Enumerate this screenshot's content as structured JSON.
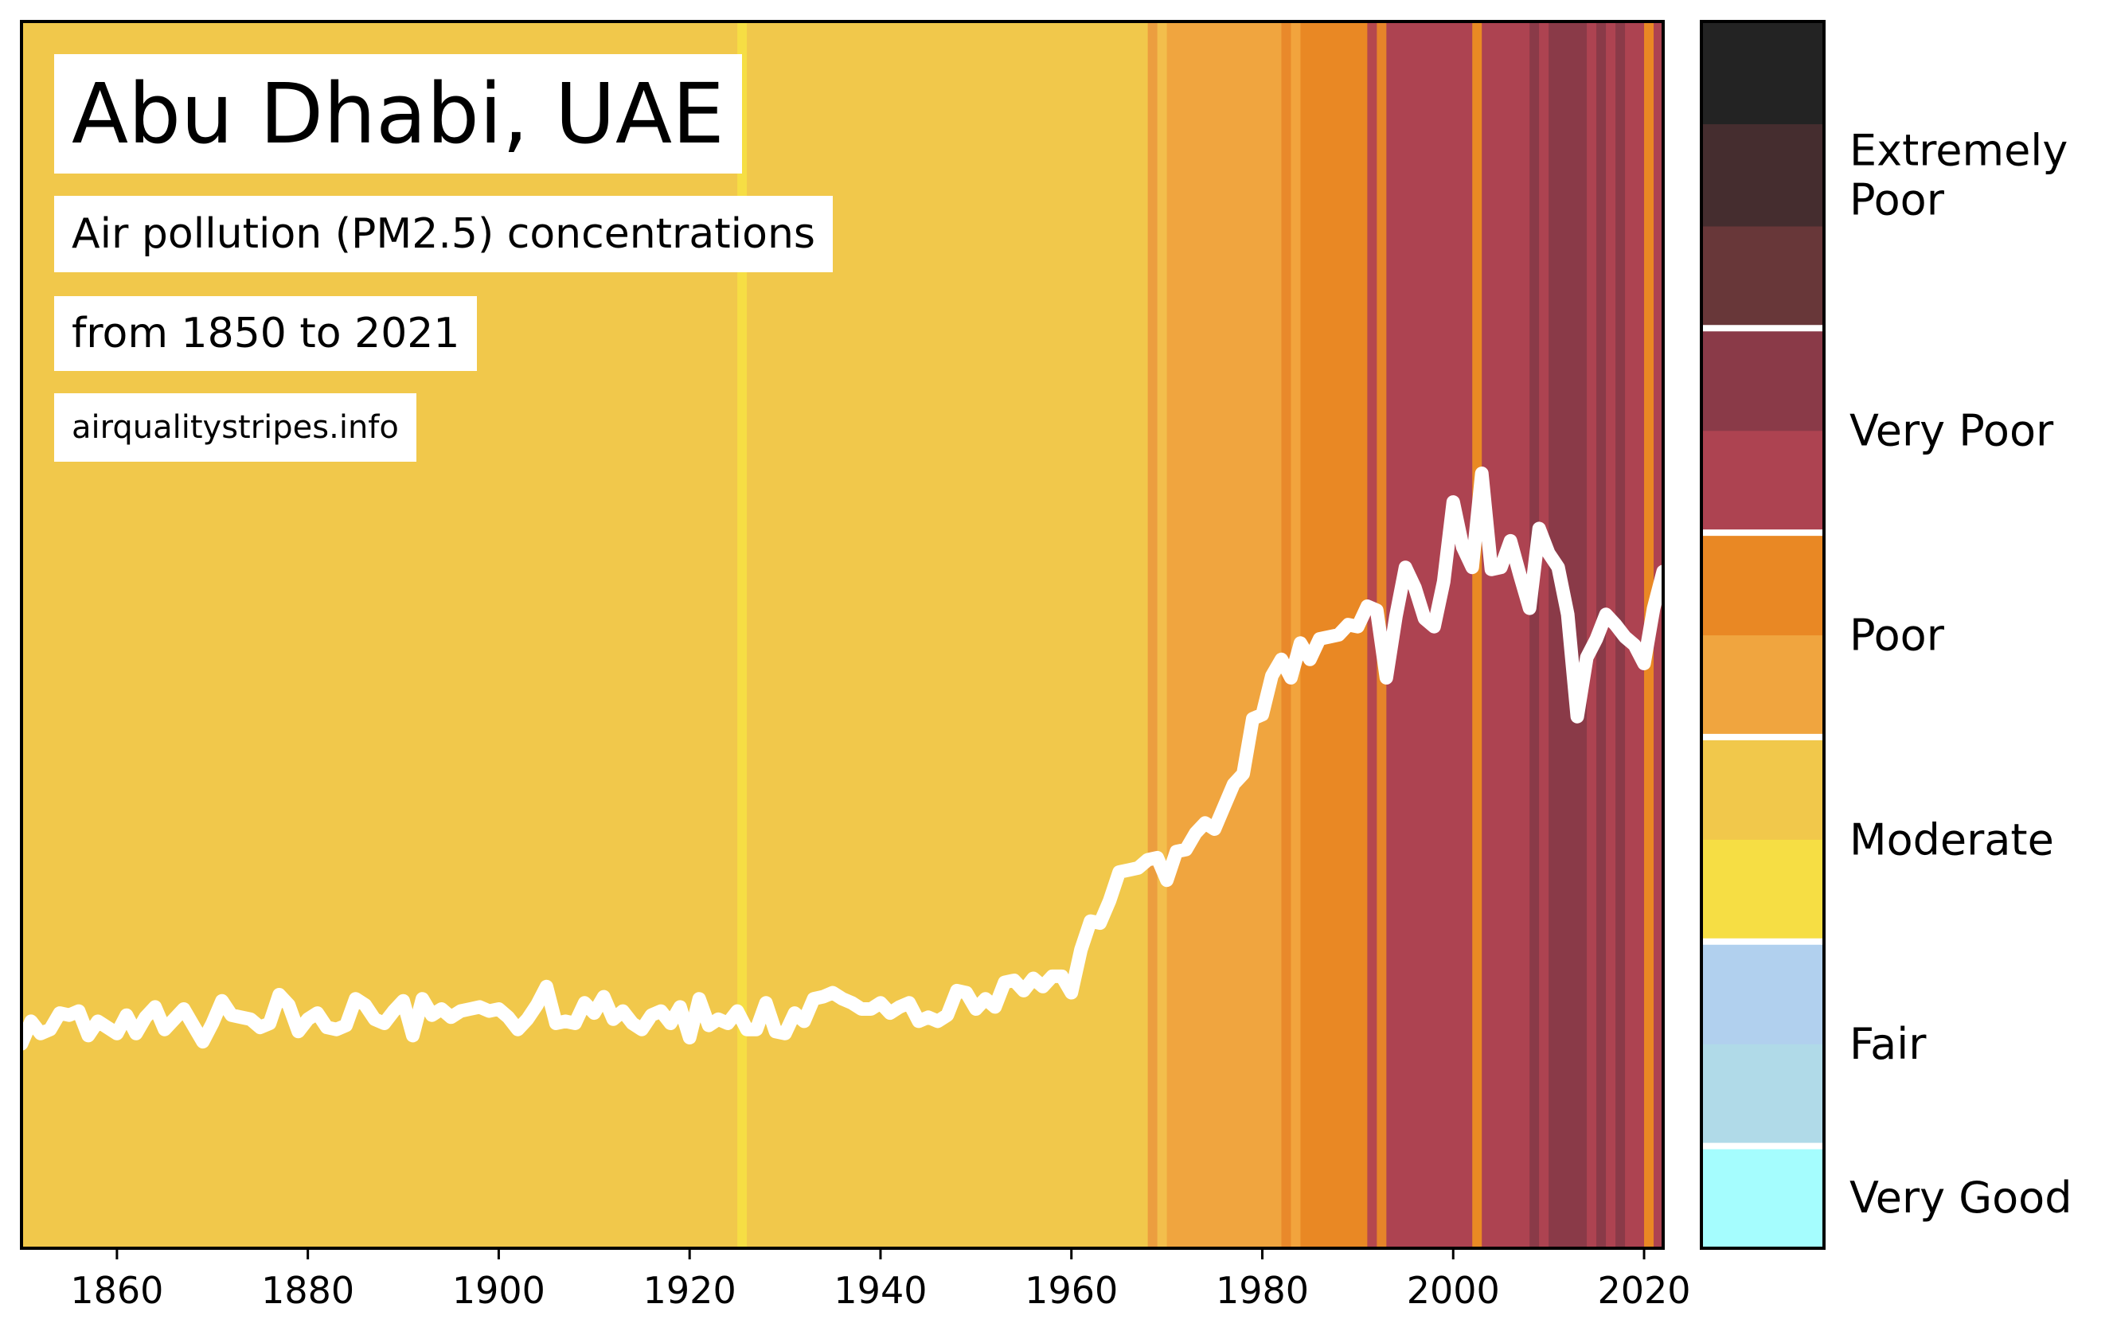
{
  "chart_data": {
    "type": "line",
    "title": "Abu Dhabi, UAE",
    "subtitle": "Air pollution (PM2.5) concentrations",
    "subtitle2": "from 1850 to 2021",
    "source": "airqualitystripes.info",
    "xlabel": "",
    "ylabel": "",
    "xlim": [
      1850,
      2022
    ],
    "ylim": [
      0,
      60
    ],
    "x_ticks": [
      1860,
      1880,
      1900,
      1920,
      1940,
      1960,
      1980,
      2000,
      2020
    ],
    "grid": false,
    "line_color": "#ffffff",
    "years": [
      1850,
      1851,
      1852,
      1853,
      1854,
      1855,
      1856,
      1857,
      1858,
      1859,
      1860,
      1861,
      1862,
      1863,
      1864,
      1865,
      1866,
      1867,
      1868,
      1869,
      1870,
      1871,
      1872,
      1873,
      1874,
      1875,
      1876,
      1877,
      1878,
      1879,
      1880,
      1881,
      1882,
      1883,
      1884,
      1885,
      1886,
      1887,
      1888,
      1889,
      1890,
      1891,
      1892,
      1893,
      1894,
      1895,
      1896,
      1897,
      1898,
      1899,
      1900,
      1901,
      1902,
      1903,
      1904,
      1905,
      1906,
      1907,
      1908,
      1909,
      1910,
      1911,
      1912,
      1913,
      1914,
      1915,
      1916,
      1917,
      1918,
      1919,
      1920,
      1921,
      1922,
      1923,
      1924,
      1925,
      1926,
      1927,
      1928,
      1929,
      1930,
      1931,
      1932,
      1933,
      1934,
      1935,
      1936,
      1937,
      1938,
      1939,
      1940,
      1941,
      1942,
      1943,
      1944,
      1945,
      1946,
      1947,
      1948,
      1949,
      1950,
      1951,
      1952,
      1953,
      1954,
      1955,
      1956,
      1957,
      1958,
      1959,
      1960,
      1961,
      1962,
      1963,
      1964,
      1965,
      1966,
      1967,
      1968,
      1969,
      1970,
      1971,
      1972,
      1973,
      1974,
      1975,
      1976,
      1977,
      1978,
      1979,
      1980,
      1981,
      1982,
      1983,
      1984,
      1985,
      1986,
      1987,
      1988,
      1989,
      1990,
      1991,
      1992,
      1993,
      1994,
      1995,
      1996,
      1997,
      1998,
      1999,
      2000,
      2001,
      2002,
      2003,
      2004,
      2005,
      2006,
      2007,
      2008,
      2009,
      2010,
      2011,
      2012,
      2013,
      2014,
      2015,
      2016,
      2017,
      2018,
      2019,
      2020,
      2021,
      2022
    ],
    "values": [
      10.0,
      11.1,
      10.5,
      10.7,
      11.5,
      11.4,
      11.6,
      10.4,
      11.1,
      10.8,
      10.5,
      11.4,
      10.5,
      11.3,
      11.8,
      10.7,
      11.2,
      11.7,
      10.9,
      10.1,
      11.0,
      12.1,
      11.4,
      11.3,
      11.2,
      10.8,
      11.0,
      12.4,
      11.9,
      10.6,
      11.2,
      11.5,
      10.8,
      10.7,
      10.9,
      12.2,
      11.9,
      11.2,
      11.0,
      11.6,
      12.1,
      10.4,
      12.2,
      11.4,
      11.7,
      11.3,
      11.6,
      11.7,
      11.8,
      11.6,
      11.7,
      11.3,
      10.7,
      11.2,
      11.9,
      12.8,
      11.0,
      11.1,
      11.0,
      12.0,
      11.5,
      12.3,
      11.2,
      11.6,
      11.0,
      10.7,
      11.4,
      11.6,
      11.0,
      11.8,
      10.3,
      12.2,
      10.9,
      11.2,
      11.0,
      11.6,
      10.7,
      10.7,
      12.0,
      10.6,
      10.5,
      11.5,
      11.1,
      12.2,
      12.3,
      12.5,
      12.2,
      12.0,
      11.7,
      11.7,
      12.0,
      11.5,
      11.8,
      12.0,
      11.1,
      11.3,
      11.1,
      11.4,
      12.6,
      12.5,
      11.7,
      12.2,
      11.8,
      13.0,
      13.1,
      12.6,
      13.2,
      12.8,
      13.3,
      13.3,
      12.5,
      14.6,
      16.0,
      15.9,
      17.0,
      18.4,
      18.5,
      18.6,
      19.0,
      19.1,
      18.0,
      19.4,
      19.5,
      20.3,
      20.8,
      20.5,
      21.6,
      22.7,
      23.2,
      25.9,
      26.1,
      28.0,
      28.8,
      27.9,
      29.6,
      28.8,
      29.8,
      29.9,
      30.0,
      30.5,
      30.4,
      31.4,
      31.2,
      27.9,
      30.9,
      33.3,
      32.3,
      30.8,
      30.4,
      32.6,
      36.5,
      34.3,
      33.3,
      37.9,
      33.2,
      33.3,
      34.6,
      32.9,
      31.3,
      35.2,
      34.0,
      33.3,
      31.0,
      26.0,
      28.9,
      29.8,
      31.0,
      30.5,
      29.9,
      29.5,
      28.6,
      31.3,
      33.1
    ],
    "stripes": [
      {
        "from": 1850,
        "to": 1925,
        "color": "#F1C84B"
      },
      {
        "from": 1925,
        "to": 1926,
        "color": "#F6DE44"
      },
      {
        "from": 1926,
        "to": 1968,
        "color": "#F1C84B"
      },
      {
        "from": 1968,
        "to": 1969,
        "color": "#EC9E3F"
      },
      {
        "from": 1969,
        "to": 1970,
        "color": "#F3BE4C"
      },
      {
        "from": 1970,
        "to": 1982,
        "color": "#F0A53F"
      },
      {
        "from": 1982,
        "to": 1983,
        "color": "#E9892B"
      },
      {
        "from": 1983,
        "to": 1984,
        "color": "#F2A43D"
      },
      {
        "from": 1984,
        "to": 1991,
        "color": "#E98824"
      },
      {
        "from": 1991,
        "to": 1992,
        "color": "#B5484E"
      },
      {
        "from": 1992,
        "to": 1993,
        "color": "#E6842A"
      },
      {
        "from": 1993,
        "to": 2002,
        "color": "#AD4351"
      },
      {
        "from": 2002,
        "to": 2003,
        "color": "#E98A24"
      },
      {
        "from": 2003,
        "to": 2008,
        "color": "#AD4351"
      },
      {
        "from": 2008,
        "to": 2009,
        "color": "#8A3A48"
      },
      {
        "from": 2009,
        "to": 2010,
        "color": "#AD4351"
      },
      {
        "from": 2010,
        "to": 2014,
        "color": "#8A3A48"
      },
      {
        "from": 2014,
        "to": 2015,
        "color": "#AD4351"
      },
      {
        "from": 2015,
        "to": 2016,
        "color": "#8A3A48"
      },
      {
        "from": 2016,
        "to": 2017,
        "color": "#AD4351"
      },
      {
        "from": 2017,
        "to": 2018,
        "color": "#8A3A48"
      },
      {
        "from": 2018,
        "to": 2020,
        "color": "#AD4351"
      },
      {
        "from": 2020,
        "to": 2021,
        "color": "#E98824"
      },
      {
        "from": 2021,
        "to": 2022,
        "color": "#AD4351"
      }
    ],
    "colorbar": {
      "blocks": [
        "#A5FDFE",
        "#B0DAE8",
        "#B1D0EE",
        "#F6DE44",
        "#F1C84B",
        "#F0A53F",
        "#E98824",
        "#AD4351",
        "#8A3A48",
        "#683739",
        "#452D2F",
        "#232323"
      ],
      "separators_after_block": [
        0,
        2,
        4,
        6,
        8
      ],
      "labels": [
        {
          "text": "Very Good",
          "center_block": 0.5
        },
        {
          "text": "Fair",
          "center_block": 2.0
        },
        {
          "text": "Moderate",
          "center_block": 4.0
        },
        {
          "text": "Poor",
          "center_block": 6.0
        },
        {
          "text": "Very Poor",
          "center_block": 8.0
        },
        {
          "text": "Extremely\nPoor",
          "center_block": 10.5
        }
      ]
    }
  }
}
